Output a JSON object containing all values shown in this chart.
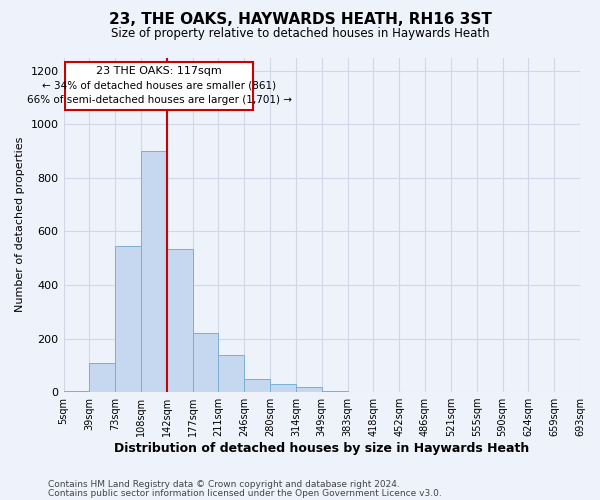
{
  "title1": "23, THE OAKS, HAYWARDS HEATH, RH16 3ST",
  "title2": "Size of property relative to detached houses in Haywards Heath",
  "xlabel": "Distribution of detached houses by size in Haywards Heath",
  "ylabel": "Number of detached properties",
  "footer1": "Contains HM Land Registry data © Crown copyright and database right 2024.",
  "footer2": "Contains public sector information licensed under the Open Government Licence v3.0.",
  "annotation_line1": "23 THE OAKS: 117sqm",
  "annotation_line2": "← 34% of detached houses are smaller (861)",
  "annotation_line3": "66% of semi-detached houses are larger (1,701) →",
  "subject_bin_index": 3,
  "bar_values": [
    5,
    110,
    545,
    900,
    535,
    220,
    140,
    50,
    32,
    20,
    5,
    0,
    0,
    0,
    0,
    0,
    0,
    0,
    0,
    0
  ],
  "bin_labels": [
    "5sqm",
    "39sqm",
    "73sqm",
    "108sqm",
    "142sqm",
    "177sqm",
    "211sqm",
    "246sqm",
    "280sqm",
    "314sqm",
    "349sqm",
    "383sqm",
    "418sqm",
    "452sqm",
    "486sqm",
    "521sqm",
    "555sqm",
    "590sqm",
    "624sqm",
    "659sqm",
    "693sqm"
  ],
  "bar_color": "#c5d8f0",
  "bar_edge_color": "#7bafd4",
  "subject_line_color": "#cc0000",
  "annotation_box_edge_color": "#cc0000",
  "grid_color": "#d0d8e8",
  "background_color": "#eef2fb",
  "ylim": [
    0,
    1250
  ],
  "yticks": [
    0,
    200,
    400,
    600,
    800,
    1000,
    1200
  ]
}
